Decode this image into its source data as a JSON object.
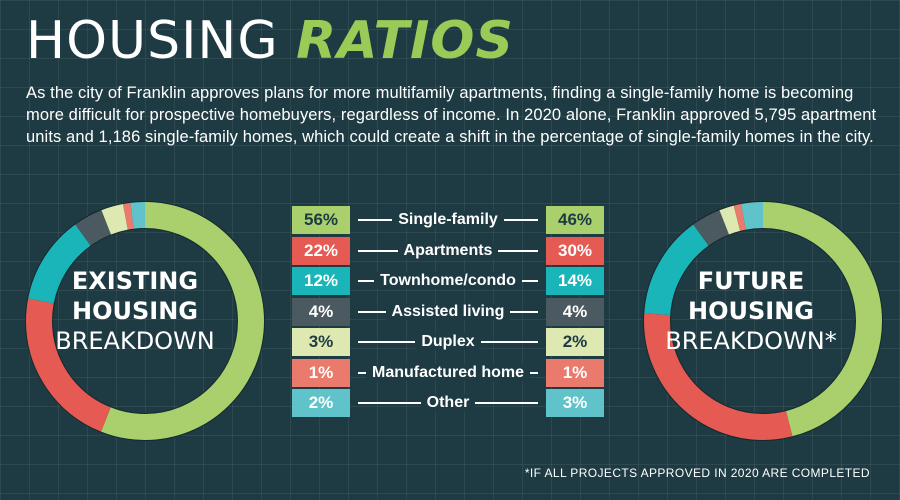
{
  "header": {
    "title_main": "HOUSING",
    "title_accent": "RATIOS",
    "intro": "As the city of Franklin approves plans for more multifamily apartments, finding a single-family home is becoming more difficult for prospective homebuyers, regardless of income. In 2020 alone, Franklin approved 5,795 apartment units and 1,186 single-family homes, which could create a shift in the percentage of single-family homes in the city."
  },
  "labels": {
    "existing": {
      "line1": "EXISTING",
      "line2": "HOUSING",
      "line3": "BREAKDOWN"
    },
    "future": {
      "line1": "FUTURE",
      "line2": "HOUSING",
      "line3": "BREAKDOWN*"
    }
  },
  "footnote": "*IF ALL PROJECTS APPROVED IN 2020 ARE COMPLETED",
  "colors": {
    "background": "#1e3a42",
    "accent": "#9acb57",
    "categories": [
      "#a9d06c",
      "#e55a52",
      "#19b5b8",
      "#4b5a60",
      "#dde9b0",
      "#ea7a6c",
      "#5fc3c9"
    ]
  },
  "chart_data": [
    {
      "type": "pie",
      "variant": "donut",
      "categories": [
        "Single-family",
        "Apartments",
        "Townhome/condo",
        "Assisted living",
        "Duplex",
        "Manufactured home",
        "Other"
      ],
      "values": [
        56,
        22,
        12,
        4,
        3,
        1,
        2
      ],
      "value_labels": [
        "56%",
        "22%",
        "12%",
        "4%",
        "3%",
        "1%",
        "2%"
      ],
      "unit": "%"
    },
    {
      "type": "pie",
      "variant": "donut",
      "categories": [
        "Single-family",
        "Apartments",
        "Townhome/condo",
        "Assisted living",
        "Duplex",
        "Manufactured home",
        "Other"
      ],
      "values": [
        46,
        30,
        14,
        4,
        2,
        1,
        3
      ],
      "value_labels": [
        "46%",
        "30%",
        "14%",
        "4%",
        "2%",
        "1%",
        "3%"
      ],
      "unit": "%"
    }
  ]
}
